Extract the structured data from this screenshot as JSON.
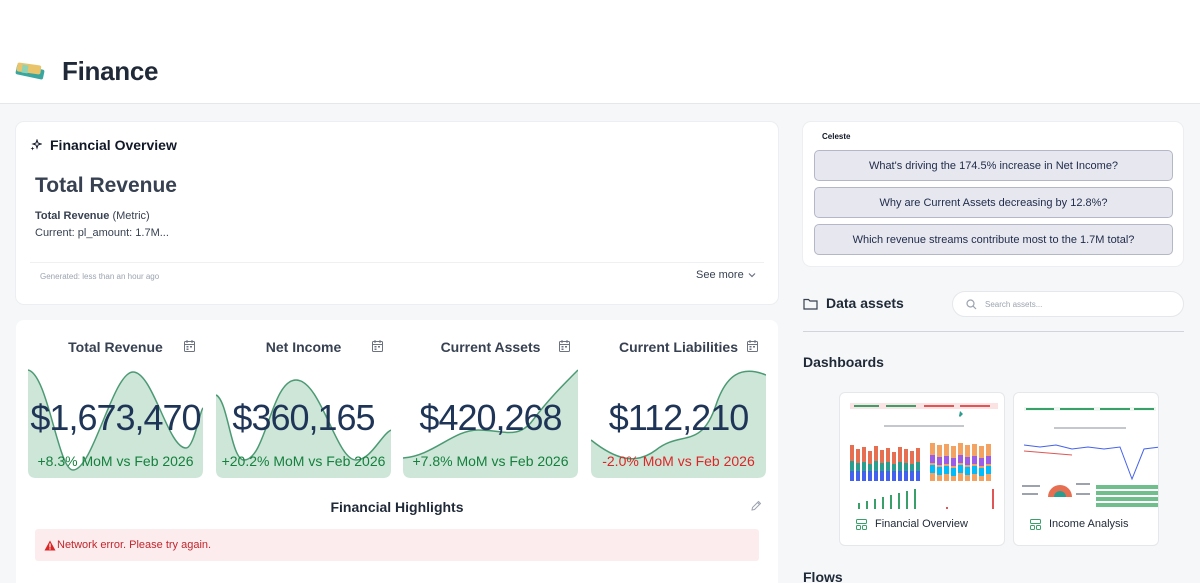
{
  "page": {
    "title": "Finance"
  },
  "colors": {
    "accent": "#4c9a73",
    "sparkline_fill": "#cde6d8",
    "positive": "#15803d",
    "negative": "#dc2626",
    "value_text": "#1f3557"
  },
  "overview": {
    "title": "Financial Overview",
    "metric_title": "Total Revenue",
    "metric_name": "Total Revenue",
    "metric_kind": "(Metric)",
    "current_line": "Current: pl_amount: 1.7M...",
    "generated": "Generated: less than an hour ago",
    "see_more": "See more"
  },
  "celeste": {
    "label": "Celeste",
    "suggestions": [
      "What's driving the 174.5% increase in Net Income?",
      "Why are Current Assets decreasing by 12.8%?",
      "Which revenue streams contribute most to the 1.7M total?"
    ]
  },
  "data_assets": {
    "title": "Data assets",
    "search_placeholder": "Search assets...",
    "dashboards_heading": "Dashboards",
    "flows_heading": "Flows",
    "dashboards": [
      {
        "label": "Financial Overview"
      },
      {
        "label": "Income Analysis"
      }
    ]
  },
  "kpis": [
    {
      "title": "Total Revenue",
      "value": "$1,673,470",
      "delta": "+8.3% MoM vs Feb 2026",
      "trend": "positive"
    },
    {
      "title": "Net Income",
      "value": "$360,165",
      "delta": "+20.2% MoM vs Feb 2026",
      "trend": "positive"
    },
    {
      "title": "Current Assets",
      "value": "$420,268",
      "delta": "+7.8% MoM vs Feb 2026",
      "trend": "positive"
    },
    {
      "title": "Current Liabilities",
      "value": "$112,210",
      "delta": "-2.0% MoM vs Feb 2026",
      "trend": "negative"
    }
  ],
  "highlights": {
    "title": "Financial Highlights",
    "error": "Network error. Please try again."
  }
}
